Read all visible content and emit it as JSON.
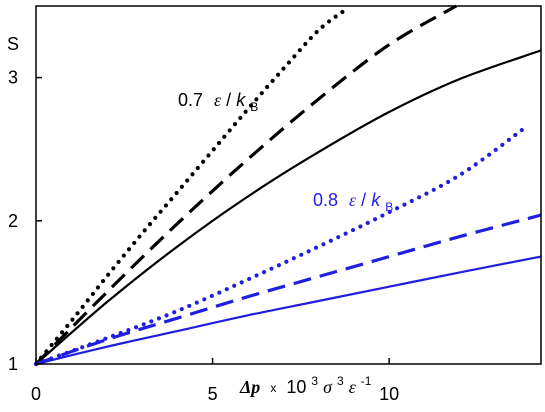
{
  "chart_data": {
    "type": "line",
    "ylabel": "S",
    "xlabel_parts": {
      "symbol": "Δp",
      "times": "x",
      "exp_base": "10",
      "exp_pow": "3",
      "sigma": "σ",
      "sigma_pow": "3",
      "eps": "ε",
      "eps_pow": "-1"
    },
    "xlim": [
      0,
      14.3
    ],
    "ylim": [
      1,
      3.5
    ],
    "x_ticks": [
      0,
      5,
      10
    ],
    "x_tick_labels": [
      "0",
      "5",
      "10"
    ],
    "y_ticks": [
      1,
      2,
      3
    ],
    "y_tick_labels": [
      "1",
      "2",
      "3"
    ],
    "grid": false,
    "annotations": [
      {
        "id": "ann07",
        "num": "0.7",
        "eps": "ε",
        "slash": "/",
        "k": "k",
        "sub": "B",
        "color": "#000000"
      },
      {
        "id": "ann08",
        "num": "0.8",
        "eps": "ε",
        "slash": "/",
        "k": "k",
        "sub": "B",
        "color": "#1f1fe0"
      }
    ],
    "series": [
      {
        "key": "t07-dotted",
        "temperature": "0.7",
        "color": "#000000",
        "style": "dotted",
        "x": [
          0,
          1,
          2,
          3,
          4,
          5,
          6,
          7,
          8,
          8.8
        ],
        "y": [
          1,
          1.3,
          1.61,
          1.91,
          2.2,
          2.49,
          2.78,
          3.06,
          3.33,
          3.48
        ]
      },
      {
        "key": "t07-dashed",
        "temperature": "0.7",
        "color": "#000000",
        "style": "dashed",
        "x": [
          0,
          2,
          4,
          6,
          8,
          10,
          11.9
        ],
        "y": [
          1,
          1.5,
          1.98,
          2.43,
          2.85,
          3.23,
          3.5
        ]
      },
      {
        "key": "t07-solid",
        "temperature": "0.7",
        "color": "#000000",
        "style": "solid",
        "x": [
          0,
          2,
          4,
          6,
          8,
          10,
          12,
          14.3
        ],
        "y": [
          1,
          1.43,
          1.82,
          2.17,
          2.48,
          2.76,
          2.99,
          3.19
        ]
      },
      {
        "key": "t08-dotted",
        "temperature": "0.8",
        "color": "#1f1fe0",
        "style": "dotted",
        "x": [
          0,
          2,
          4,
          6,
          8,
          10,
          12,
          13.9
        ],
        "y": [
          1,
          1.18,
          1.37,
          1.59,
          1.82,
          2.06,
          2.32,
          2.66
        ]
      },
      {
        "key": "t08-dashed",
        "temperature": "0.8",
        "color": "#1f1fe0",
        "style": "dashed",
        "x": [
          0,
          2,
          4,
          6,
          8,
          10,
          12,
          14.3
        ],
        "y": [
          1,
          1.17,
          1.32,
          1.47,
          1.61,
          1.75,
          1.89,
          2.04
        ]
      },
      {
        "key": "t08-solid",
        "temperature": "0.8",
        "color": "#1f1fe0",
        "style": "solid",
        "x": [
          0,
          2,
          4,
          6,
          8,
          10,
          12,
          14.3
        ],
        "y": [
          1,
          1.12,
          1.23,
          1.34,
          1.44,
          1.54,
          1.64,
          1.75
        ]
      }
    ]
  }
}
